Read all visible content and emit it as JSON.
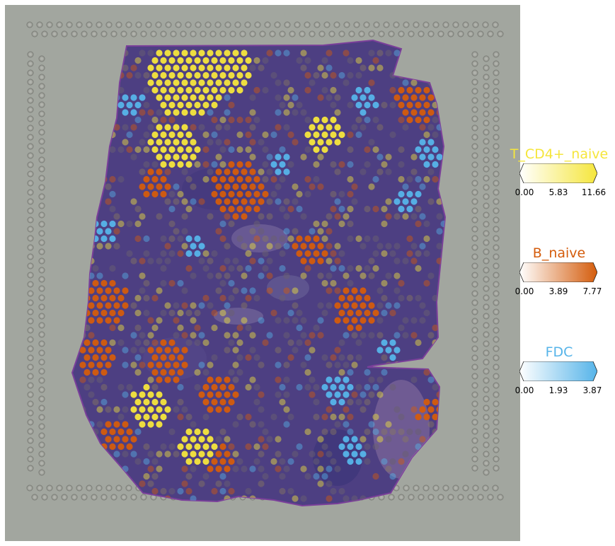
{
  "colors": {
    "background": "#ffffff",
    "slide": "#a2a69f",
    "tissue": "#4d3f82",
    "T_CD4_naive": "#f5e63c",
    "B_naive": "#d45c0c",
    "FDC": "#56b4e9"
  },
  "legends": [
    {
      "title": "T_CD4+_naive",
      "color": "#f5e63c",
      "ticks": [
        "0.00",
        "5.83",
        "11.66"
      ],
      "min": 0.0,
      "max": 11.66
    },
    {
      "title": "B_naive",
      "color": "#d45c0c",
      "ticks": [
        "0.00",
        "3.89",
        "7.77"
      ],
      "min": 0.0,
      "max": 7.77
    },
    {
      "title": "FDC",
      "color": "#56b4e9",
      "ticks": [
        "0.00",
        "1.93",
        "3.87"
      ],
      "min": 0.0,
      "max": 3.87
    }
  ]
}
